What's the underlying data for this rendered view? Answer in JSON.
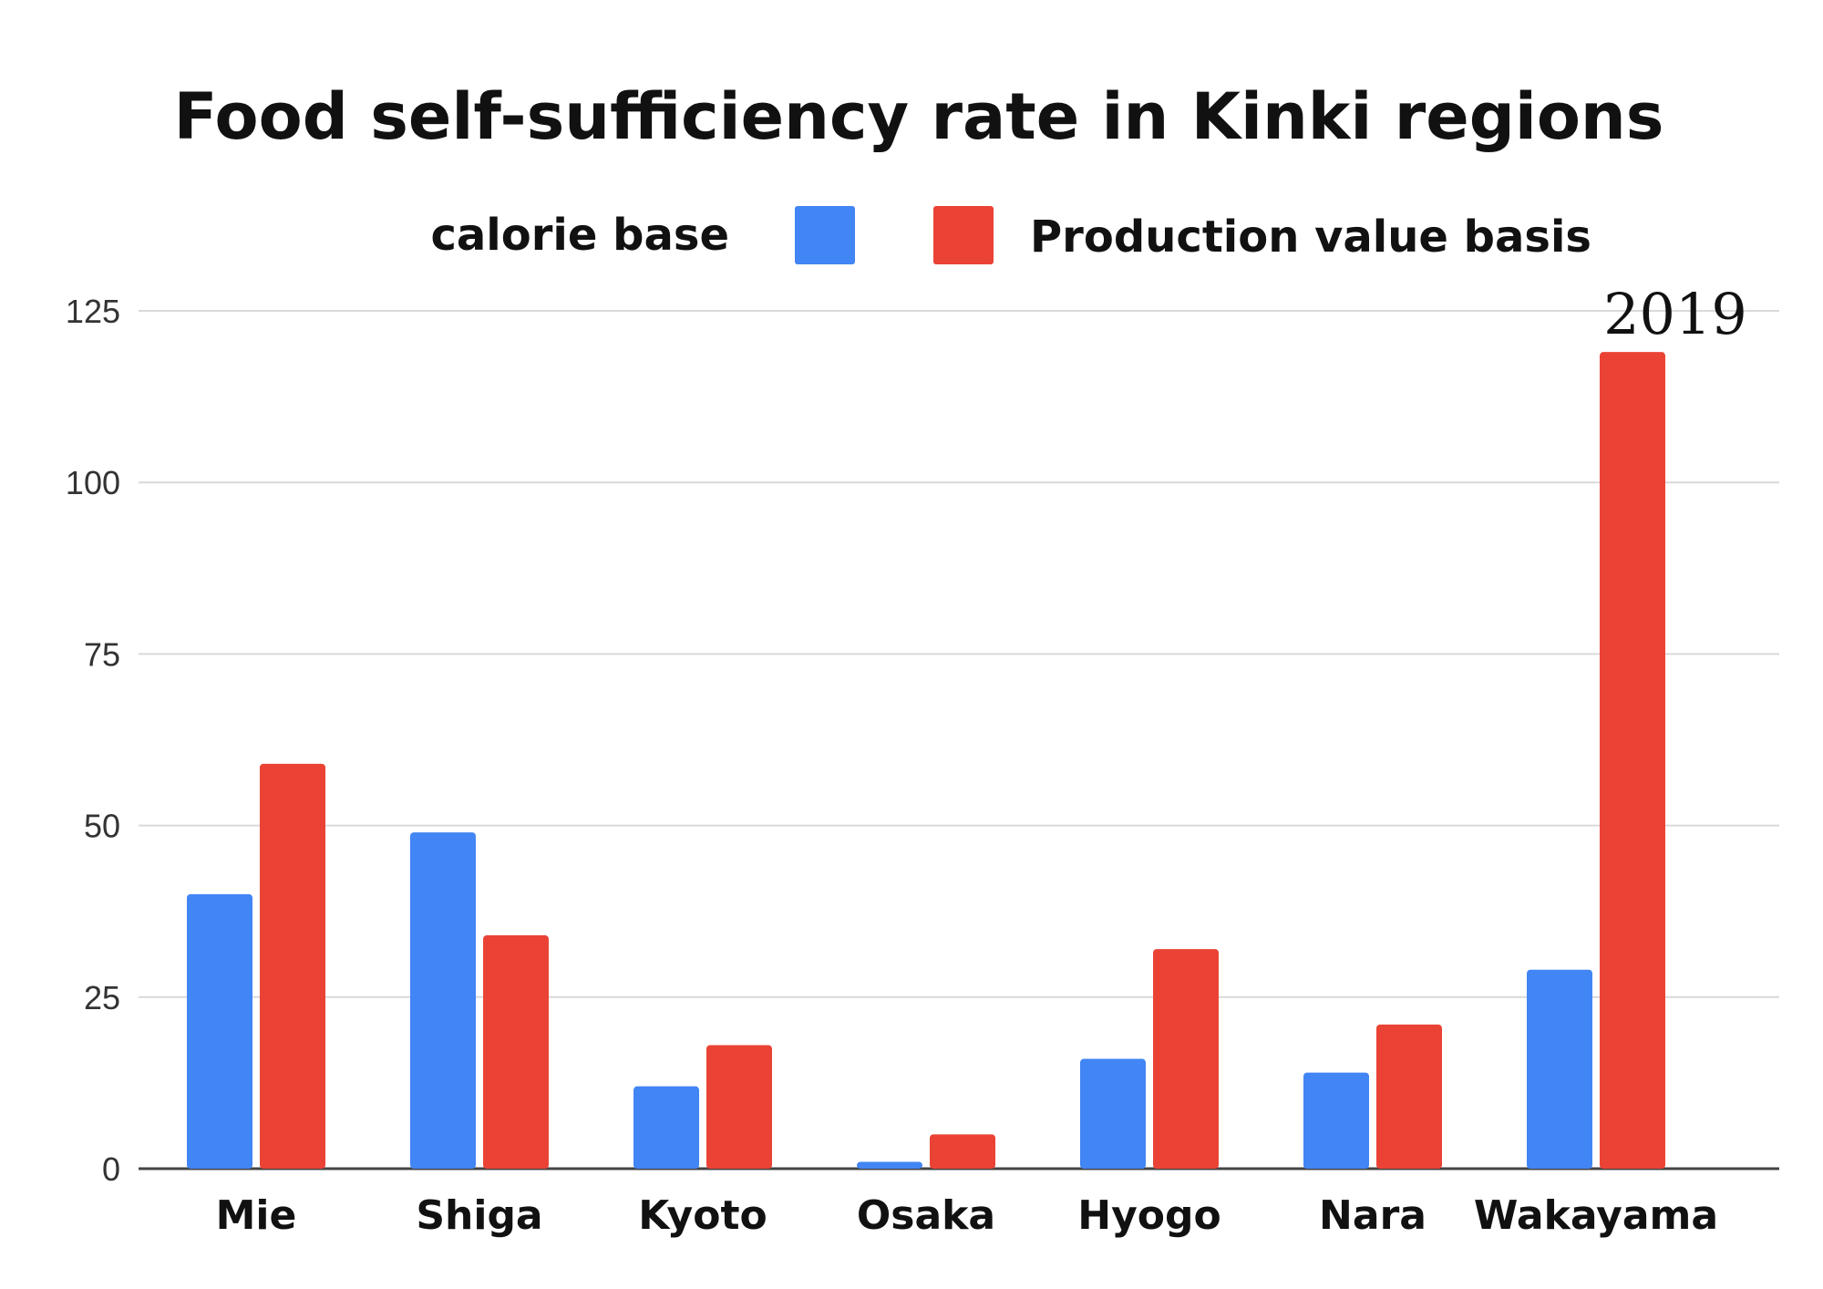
{
  "chart_data": {
    "type": "bar",
    "title": "Food self-sufficiency rate in Kinki regions",
    "categories": [
      "Mie",
      "Shiga",
      "Kyoto",
      "Osaka",
      "Hyogo",
      "Nara",
      "Wakayama"
    ],
    "series": [
      {
        "name": "calorie base",
        "color": "#4285f4",
        "values": [
          40,
          49,
          12,
          1,
          16,
          14,
          29
        ]
      },
      {
        "name": "Production value basis",
        "color": "#ea4335",
        "values": [
          59,
          34,
          18,
          5,
          32,
          21,
          119
        ]
      }
    ],
    "ylim": [
      0,
      125
    ],
    "yticks": [
      "0",
      "25",
      "50",
      "75",
      "100",
      "125"
    ],
    "xlabel": "",
    "ylabel": "",
    "grid": true,
    "legend_position": "top",
    "annotation": "2019"
  }
}
